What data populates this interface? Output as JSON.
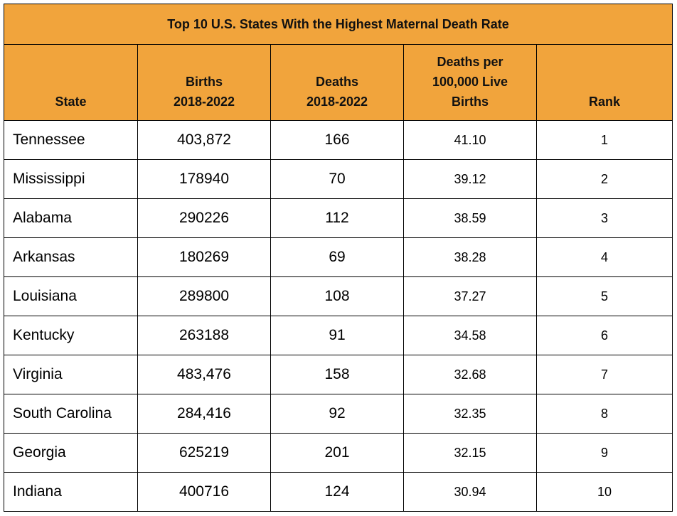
{
  "chart_data": {
    "type": "table",
    "title": "Top 10 U.S. States With the Highest Maternal Death Rate",
    "columns": [
      [
        "State"
      ],
      [
        "Births",
        "2018-2022"
      ],
      [
        "Deaths",
        "2018-2022"
      ],
      [
        "Deaths per",
        "100,000 Live",
        "Births"
      ],
      [
        "Rank"
      ]
    ],
    "rows": [
      {
        "state": "Tennessee",
        "births": "403,872",
        "deaths": "166",
        "rate": "41.10",
        "rank": "1"
      },
      {
        "state": "Mississippi",
        "births": "178940",
        "deaths": "70",
        "rate": "39.12",
        "rank": "2"
      },
      {
        "state": "Alabama",
        "births": "290226",
        "deaths": "112",
        "rate": "38.59",
        "rank": "3"
      },
      {
        "state": "Arkansas",
        "births": "180269",
        "deaths": "69",
        "rate": "38.28",
        "rank": "4"
      },
      {
        "state": "Louisiana",
        "births": "289800",
        "deaths": "108",
        "rate": "37.27",
        "rank": "5"
      },
      {
        "state": "Kentucky",
        "births": "263188",
        "deaths": "91",
        "rate": "34.58",
        "rank": "6"
      },
      {
        "state": "Virginia",
        "births": "483,476",
        "deaths": "158",
        "rate": "32.68",
        "rank": "7"
      },
      {
        "state": "South Carolina",
        "births": "284,416",
        "deaths": "92",
        "rate": "32.35",
        "rank": "8"
      },
      {
        "state": "Georgia",
        "births": "625219",
        "deaths": "201",
        "rate": "32.15",
        "rank": "9"
      },
      {
        "state": "Indiana",
        "births": "400716",
        "deaths": "124",
        "rate": "30.94",
        "rank": "10"
      }
    ],
    "colors": {
      "header_fill": "#f1a43c",
      "border": "#000000",
      "body_fill": "#ffffff"
    }
  }
}
